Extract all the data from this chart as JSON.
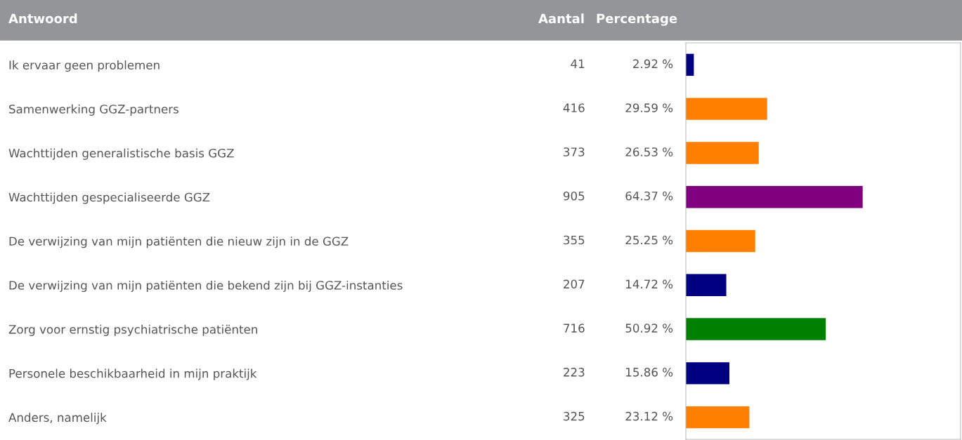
{
  "chart_data": {
    "type": "bar",
    "orientation": "horizontal",
    "ylabel": "Antwoord",
    "categories": [
      "Ik ervaar geen problemen",
      "Samenwerking GGZ-partners",
      "Wachttijden generalistische basis GGZ",
      "Wachttijden gespecialiseerde GGZ",
      "De verwijzing van mijn patiënten die nieuw zijn in de GGZ",
      "De verwijzing van mijn patiënten die bekend zijn bij GGZ-instanties",
      "Zorg voor ernstig psychiatrische patiënten",
      "Personele beschikbaarheid in mijn praktijk",
      "Anders, namelijk"
    ],
    "values": [
      2.92,
      29.59,
      26.53,
      64.37,
      25.25,
      14.72,
      50.92,
      15.86,
      23.12
    ],
    "colors": [
      "#000080",
      "#ff8000",
      "#ff8000",
      "#800080",
      "#ff8000",
      "#000080",
      "#008000",
      "#000080",
      "#ff8000"
    ],
    "value_labels": [
      "2.92 %",
      "29.59 %",
      "26.53 %",
      "64.37 %",
      "25.25 %",
      "14.72 %",
      "50.92 %",
      "15.86 %",
      "23.12 %"
    ],
    "xlim": [
      0,
      100
    ],
    "annotations": [
      "Aantal",
      "Percentage",
      "41",
      "416",
      "373",
      "905",
      "355",
      "207",
      "716",
      "223",
      "325"
    ]
  }
}
